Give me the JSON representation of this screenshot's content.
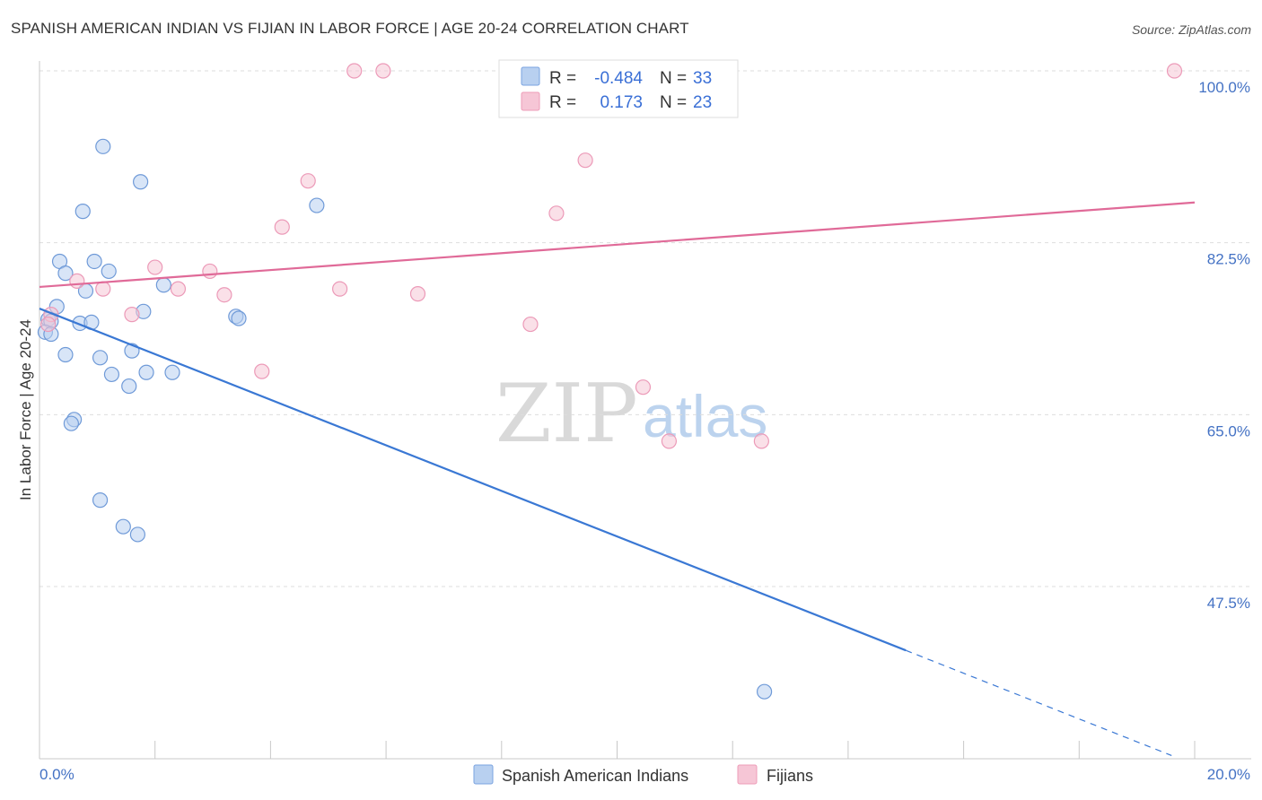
{
  "title": "SPANISH AMERICAN INDIAN VS FIJIAN IN LABOR FORCE | AGE 20-24 CORRELATION CHART",
  "source": "Source: ZipAtlas.com",
  "watermark": {
    "zip": "ZIP",
    "atlas": "atlas"
  },
  "colors": {
    "blue": "#3a78d4",
    "blue_fill": "#b8d0f0",
    "pink": "#e06a98",
    "pink_fill": "#f6c6d6",
    "tick_text": "#4472c4"
  },
  "chart_data": {
    "type": "scatter",
    "title": "SPANISH AMERICAN INDIAN VS FIJIAN IN LABOR FORCE | AGE 20-24 CORRELATION CHART",
    "xlabel": "",
    "ylabel": "In Labor Force | Age 20-24",
    "xlim": [
      0,
      20
    ],
    "ylim": [
      32.5,
      101.5
    ],
    "y_ticks": [
      {
        "value": 100,
        "label": "100.0%"
      },
      {
        "value": 82.5,
        "label": "82.5%"
      },
      {
        "value": 65,
        "label": "65.0%"
      },
      {
        "value": 47.5,
        "label": "47.5%"
      }
    ],
    "x_tick_labels": [
      {
        "value": 0,
        "label": "0.0%"
      },
      {
        "value": 20,
        "label": "20.0%"
      }
    ],
    "legend": {
      "entries": [
        {
          "r_label": "R =",
          "r_value": "-0.484",
          "n_label": "N =",
          "n_value": "33"
        },
        {
          "r_label": "R =",
          "r_value": "0.173",
          "n_label": "N =",
          "n_value": "23"
        }
      ]
    },
    "series": [
      {
        "name": "Spanish American Indians",
        "color": "#3a78d4",
        "trend": {
          "x": [
            0,
            15.0
          ],
          "y": [
            75.8,
            41.0
          ],
          "dashed_to": {
            "x": 19.6,
            "y": 30.3
          }
        },
        "points": [
          {
            "x": 1.1,
            "y": 92.3
          },
          {
            "x": 1.75,
            "y": 88.7
          },
          {
            "x": 0.75,
            "y": 85.7
          },
          {
            "x": 4.8,
            "y": 86.3
          },
          {
            "x": 0.35,
            "y": 80.6
          },
          {
            "x": 0.95,
            "y": 80.6
          },
          {
            "x": 0.45,
            "y": 79.4
          },
          {
            "x": 1.2,
            "y": 79.6
          },
          {
            "x": 2.15,
            "y": 78.2
          },
          {
            "x": 0.8,
            "y": 77.6
          },
          {
            "x": 0.3,
            "y": 76.0
          },
          {
            "x": 0.15,
            "y": 74.7
          },
          {
            "x": 0.2,
            "y": 74.5
          },
          {
            "x": 0.7,
            "y": 74.3
          },
          {
            "x": 0.9,
            "y": 74.4
          },
          {
            "x": 1.8,
            "y": 75.5
          },
          {
            "x": 3.4,
            "y": 75.0
          },
          {
            "x": 3.45,
            "y": 74.8
          },
          {
            "x": 0.1,
            "y": 73.4
          },
          {
            "x": 0.2,
            "y": 73.2
          },
          {
            "x": 1.6,
            "y": 71.5
          },
          {
            "x": 0.45,
            "y": 71.1
          },
          {
            "x": 1.05,
            "y": 70.8
          },
          {
            "x": 1.25,
            "y": 69.1
          },
          {
            "x": 1.85,
            "y": 69.3
          },
          {
            "x": 2.3,
            "y": 69.3
          },
          {
            "x": 1.55,
            "y": 67.9
          },
          {
            "x": 0.6,
            "y": 64.5
          },
          {
            "x": 0.55,
            "y": 64.1
          },
          {
            "x": 1.05,
            "y": 56.3
          },
          {
            "x": 1.45,
            "y": 53.6
          },
          {
            "x": 1.7,
            "y": 52.8
          },
          {
            "x": 12.55,
            "y": 36.8
          }
        ]
      },
      {
        "name": "Fijians",
        "color": "#e06a98",
        "trend": {
          "x": [
            0,
            20.0
          ],
          "y": [
            78.0,
            86.6
          ]
        },
        "points": [
          {
            "x": 5.45,
            "y": 100.0
          },
          {
            "x": 5.95,
            "y": 100.0
          },
          {
            "x": 19.65,
            "y": 100.0
          },
          {
            "x": 9.45,
            "y": 90.9
          },
          {
            "x": 4.65,
            "y": 88.8
          },
          {
            "x": 8.95,
            "y": 85.5
          },
          {
            "x": 4.2,
            "y": 84.1
          },
          {
            "x": 2.0,
            "y": 80.0
          },
          {
            "x": 2.95,
            "y": 79.6
          },
          {
            "x": 0.65,
            "y": 78.6
          },
          {
            "x": 1.1,
            "y": 77.8
          },
          {
            "x": 2.4,
            "y": 77.8
          },
          {
            "x": 5.2,
            "y": 77.8
          },
          {
            "x": 3.2,
            "y": 77.2
          },
          {
            "x": 6.55,
            "y": 77.3
          },
          {
            "x": 0.2,
            "y": 75.2
          },
          {
            "x": 1.6,
            "y": 75.2
          },
          {
            "x": 0.15,
            "y": 74.2
          },
          {
            "x": 8.5,
            "y": 74.2
          },
          {
            "x": 3.85,
            "y": 69.4
          },
          {
            "x": 10.45,
            "y": 67.8
          },
          {
            "x": 10.9,
            "y": 62.3
          },
          {
            "x": 12.5,
            "y": 62.3
          }
        ]
      }
    ]
  }
}
